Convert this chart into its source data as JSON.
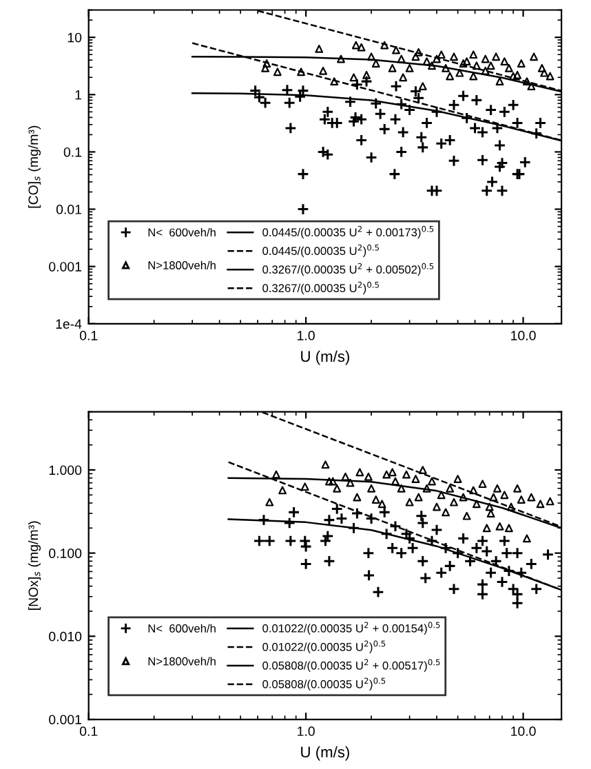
{
  "chart_data": [
    {
      "type": "scatter",
      "xlabel": "U (m/s)",
      "ylabel": "[CO]$_{s}$ (mg/m³)",
      "log": "xy",
      "legend": "bottom left",
      "grid": false,
      "xlim": [
        0.1,
        15
      ],
      "xticks": [
        {
          "value": 0.1,
          "label": "0.1"
        },
        {
          "value": 1,
          "label": "1.0"
        },
        {
          "value": 10,
          "label": "10.0"
        }
      ],
      "ylim": [
        0.0001,
        30
      ],
      "yticks": [
        {
          "value": 0.0001,
          "label": "1e-4"
        },
        0.001,
        0.01,
        0.1,
        1,
        10
      ],
      "series": [
        {
          "name": "N<  600veh/h",
          "marker": "cross",
          "color": "#000000",
          "x": [
            0.585,
            0.61,
            0.65,
            0.82,
            0.84,
            0.94,
            0.97,
            0.85,
            1.26,
            1.22,
            1.32,
            1.39,
            1.2,
            1.26,
            1.69,
            1.8,
            1.66,
            1.8,
            2.0,
            1.6,
            1.72,
            1.9,
            2.1,
            2.2,
            2.3,
            2.58,
            2.8,
            2.6,
            2.75,
            3.0,
            3.2,
            3.4,
            3.45,
            3.6,
            4.0,
            4.2,
            4.6,
            4.8,
            4.8,
            5.3,
            5.5,
            6.0,
            6.5,
            6.5,
            7.1,
            7.6,
            7.8,
            8.0,
            9.0,
            9.4,
            10.2,
            12.0,
            11.5,
            3.3,
            6.1,
            8.2,
            2.75,
            0.97,
            2.56,
            9.4,
            3.8,
            4.0,
            6.8,
            8.0,
            7.2,
            7.8,
            9.6,
            0.97
          ],
          "values": [
            1.17,
            0.9,
            0.72,
            1.2,
            0.72,
            0.92,
            1.17,
            0.26,
            0.5,
            0.37,
            0.32,
            0.32,
            0.1,
            0.09,
            0.4,
            0.37,
            0.34,
            0.16,
            0.08,
            0.75,
            1.5,
            1.7,
            0.7,
            0.46,
            0.25,
            0.37,
            0.22,
            1.4,
            0.68,
            0.54,
            1.14,
            0.18,
            0.12,
            0.32,
            0.5,
            0.14,
            0.16,
            0.07,
            0.66,
            0.95,
            0.39,
            0.26,
            0.22,
            0.072,
            0.54,
            0.26,
            0.13,
            0.064,
            0.66,
            0.32,
            0.066,
            0.32,
            0.21,
            0.87,
            0.8,
            0.5,
            0.1,
            0.041,
            0.041,
            0.041,
            0.021,
            0.021,
            0.021,
            0.021,
            0.03,
            0.055,
            0.041,
            0.01
          ]
        },
        {
          "name": "N>1800veh/h",
          "marker": "triangle",
          "color": "#000000",
          "x": [
            1.15,
            0.65,
            0.66,
            0.74,
            0.95,
            1.2,
            1.35,
            1.45,
            1.7,
            1.8,
            1.66,
            1.9,
            2.0,
            2.3,
            2.6,
            2.5,
            2.75,
            3.0,
            3.3,
            3.6,
            3.45,
            4.0,
            4.4,
            4.8,
            5.1,
            5.5,
            5.9,
            6.1,
            6.7,
            7.5,
            7.8,
            8.6,
            9.4,
            10.9,
            11.2,
            12.2,
            13.3,
            12.5,
            6.7,
            5.3,
            3.8,
            4.6,
            7.1,
            9.0,
            10.4,
            2.1,
            2.8,
            3.2,
            4.2,
            5.9,
            8.2,
            9.8
          ],
          "values": [
            6.3,
            2.9,
            3.5,
            2.5,
            2.5,
            2.6,
            1.7,
            4.2,
            7.3,
            6.7,
            2.0,
            2.2,
            4.6,
            7.3,
            6.0,
            2.9,
            4.2,
            2.9,
            5.5,
            3.8,
            1.4,
            4.2,
            2.9,
            4.6,
            2.4,
            3.8,
            2.1,
            3.2,
            2.6,
            4.6,
            1.7,
            2.9,
            2.2,
            1.4,
            4.6,
            2.9,
            2.1,
            2.4,
            4.2,
            3.5,
            3.2,
            2.1,
            3.2,
            2.1,
            1.7,
            3.5,
            2.0,
            4.6,
            5.0,
            5.0,
            3.8,
            3.5
          ]
        },
        {
          "name": "0.0445/(0.00035 U$^{2}$ + 0.00173)$^{0.5}$",
          "type": "line",
          "marker": "none",
          "line_style": "solid",
          "color": "#000000",
          "x": [
            0.3,
            0.5,
            1,
            2,
            4,
            8,
            15
          ],
          "values": [
            1.06,
            1.044,
            0.976,
            0.795,
            0.52,
            0.287,
            0.157
          ]
        },
        {
          "name": "0.0445/(0.00035 U$^{2}$)$^{0.5}$",
          "type": "line",
          "marker": "none",
          "line_style": "dashed",
          "color": "#000000",
          "x": [
            0.3,
            15
          ],
          "values": [
            7.93,
            0.159
          ]
        },
        {
          "name": "0.3267/(0.00035 U$^{2}$ + 0.00502)$^{0.5}$",
          "type": "line",
          "marker": "none",
          "line_style": "solid",
          "color": "#000000",
          "x": [
            0.3,
            0.5,
            1,
            2,
            4,
            8,
            15
          ],
          "values": [
            4.6,
            4.57,
            4.46,
            4.08,
            3.17,
            1.97,
            1.13
          ]
        },
        {
          "name": "0.3267/(0.00035 U$^{2}$)$^{0.5}$",
          "type": "line",
          "marker": "none",
          "line_style": "dashed",
          "color": "#000000",
          "x": [
            0.6,
            15
          ],
          "values": [
            29.1,
            1.165
          ]
        }
      ]
    },
    {
      "type": "scatter",
      "xlabel": "U (m/s)",
      "ylabel": "[NOx]$_{s}$ (mg/m³)",
      "log": "xy",
      "legend": "bottom left",
      "grid": false,
      "xlim": [
        0.1,
        15
      ],
      "xticks": [
        {
          "value": 0.1,
          "label": "0.1"
        },
        {
          "value": 1,
          "label": "1.0"
        },
        {
          "value": 10,
          "label": "10.0"
        }
      ],
      "ylim": [
        0.001,
        5
      ],
      "yticks": [
        {
          "value": 0.001,
          "label": "0.001"
        },
        {
          "value": 0.01,
          "label": "0.010"
        },
        {
          "value": 0.1,
          "label": "0.100"
        },
        {
          "value": 1,
          "label": "1.000"
        }
      ],
      "series": [
        {
          "name": "N<  600veh/h",
          "marker": "cross",
          "color": "#000000",
          "x": [
            0.61,
            0.68,
            0.64,
            0.84,
            0.85,
            0.88,
            0.99,
            1.0,
            1.0,
            1.23,
            1.28,
            1.26,
            1.28,
            1.39,
            1.46,
            1.66,
            1.72,
            1.94,
            1.95,
            2.0,
            2.15,
            2.3,
            2.35,
            2.5,
            2.58,
            2.75,
            2.9,
            3.1,
            3.4,
            3.45,
            3.55,
            3.8,
            4.0,
            4.2,
            4.4,
            4.6,
            4.8,
            5.0,
            5.3,
            5.7,
            6.1,
            6.5,
            6.8,
            7.1,
            7.5,
            8.0,
            8.4,
            8.6,
            9.0,
            9.4,
            9.8,
            10.9,
            11.5,
            13.0,
            3.45,
            3.0,
            6.5,
            8.2,
            9.4,
            6.5,
            9.4
          ],
          "values": [
            0.14,
            0.14,
            0.25,
            0.23,
            0.14,
            0.31,
            0.14,
            0.12,
            0.074,
            0.14,
            0.25,
            0.16,
            0.08,
            0.34,
            0.26,
            0.2,
            0.3,
            0.1,
            0.054,
            0.26,
            0.034,
            0.31,
            0.17,
            0.115,
            0.21,
            0.1,
            0.17,
            0.115,
            0.28,
            0.08,
            0.05,
            0.14,
            0.19,
            0.058,
            0.115,
            0.07,
            0.037,
            0.1,
            0.15,
            0.08,
            0.115,
            0.042,
            0.105,
            0.058,
            0.08,
            0.045,
            0.1,
            0.061,
            0.037,
            0.025,
            0.058,
            0.074,
            0.037,
            0.096,
            0.23,
            0.15,
            0.14,
            0.14,
            0.1,
            0.032,
            0.032
          ]
        },
        {
          "name": "N>1800veh/h",
          "marker": "triangle",
          "color": "#000000",
          "x": [
            0.68,
            0.73,
            0.78,
            0.99,
            1.23,
            1.28,
            1.33,
            1.39,
            1.52,
            1.6,
            1.72,
            1.77,
            1.94,
            2.0,
            2.1,
            2.24,
            2.35,
            2.5,
            2.58,
            2.75,
            3.0,
            3.2,
            3.45,
            3.6,
            3.8,
            4.2,
            4.4,
            4.6,
            5.0,
            5.3,
            5.5,
            5.9,
            6.5,
            6.8,
            7.0,
            7.3,
            7.6,
            7.8,
            8.6,
            8.8,
            9.4,
            9.8,
            10.4,
            10.9,
            12.0,
            13.3,
            6.1,
            4.8,
            4.0,
            7.1,
            8.2,
            2.9,
            3.3
          ],
          "values": [
            0.41,
            0.88,
            0.57,
            0.63,
            1.16,
            0.73,
            0.73,
            0.6,
            0.83,
            0.7,
            0.47,
            0.94,
            0.83,
            0.6,
            0.44,
            0.39,
            0.88,
            0.94,
            0.73,
            0.6,
            0.41,
            0.78,
            1.0,
            0.6,
            0.73,
            0.5,
            0.31,
            0.6,
            0.78,
            0.47,
            0.28,
            0.57,
            0.68,
            0.2,
            0.36,
            0.47,
            0.6,
            0.21,
            0.2,
            0.36,
            0.6,
            0.44,
            0.15,
            0.47,
            0.39,
            0.42,
            0.39,
            0.41,
            0.36,
            0.3,
            0.5,
            0.88,
            0.47
          ]
        },
        {
          "name": "0.01022/(0.00035 U$^{2}$ + 0.00154)$^{0.5}$",
          "type": "line",
          "marker": "none",
          "line_style": "solid",
          "color": "#000000",
          "x": [
            0.44,
            1,
            2,
            4,
            8,
            15
          ],
          "values": [
            0.255,
            0.235,
            0.189,
            0.121,
            0.066,
            0.036
          ]
        },
        {
          "name": "0.01022/(0.00035 U$^{2}$)$^{0.5}$",
          "type": "line",
          "marker": "none",
          "line_style": "dashed",
          "color": "#000000",
          "x": [
            0.44,
            15
          ],
          "values": [
            1.24,
            0.036
          ]
        },
        {
          "name": "0.05808/(0.00035 U$^{2}$ + 0.00517)$^{0.5}$",
          "type": "line",
          "marker": "none",
          "line_style": "solid",
          "color": "#000000",
          "x": [
            0.44,
            1,
            2,
            4,
            8,
            15
          ],
          "values": [
            0.8,
            0.78,
            0.72,
            0.56,
            0.35,
            0.2
          ]
        },
        {
          "name": "0.05808/(0.00035 U$^{2}$)$^{0.5}$",
          "type": "line",
          "marker": "none",
          "line_style": "dashed",
          "color": "#000000",
          "x": [
            0.63,
            15
          ],
          "values": [
            4.93,
            0.207
          ]
        }
      ]
    }
  ]
}
